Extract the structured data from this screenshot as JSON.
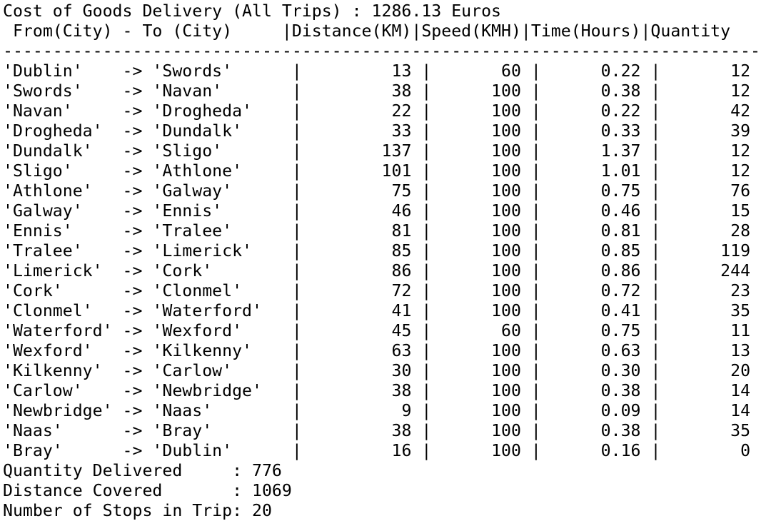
{
  "header": {
    "cost_line": "Cost of Goods Delivery (All Trips) : 1286.13 Euros",
    "columns_line": " From(City) - To (City)     |Distance(KM)|Speed(KMH)|Time(Hours)|Quantity",
    "separator_line": "----------------------------------------------------------------------------"
  },
  "columns": {
    "from_to": "From(City) - To (City)",
    "distance": "Distance(KM)",
    "speed": "Speed(KMH)",
    "time": "Time(Hours)",
    "quantity": "Quantity"
  },
  "trips": [
    {
      "from": "Dublin",
      "to": "Swords",
      "distance": "13",
      "speed": "60",
      "time": "0.22",
      "quantity": "12"
    },
    {
      "from": "Swords",
      "to": "Navan",
      "distance": "38",
      "speed": "100",
      "time": "0.38",
      "quantity": "12"
    },
    {
      "from": "Navan",
      "to": "Drogheda",
      "distance": "22",
      "speed": "100",
      "time": "0.22",
      "quantity": "42"
    },
    {
      "from": "Drogheda",
      "to": "Dundalk",
      "distance": "33",
      "speed": "100",
      "time": "0.33",
      "quantity": "39"
    },
    {
      "from": "Dundalk",
      "to": "Sligo",
      "distance": "137",
      "speed": "100",
      "time": "1.37",
      "quantity": "12"
    },
    {
      "from": "Sligo",
      "to": "Athlone",
      "distance": "101",
      "speed": "100",
      "time": "1.01",
      "quantity": "12"
    },
    {
      "from": "Athlone",
      "to": "Galway",
      "distance": "75",
      "speed": "100",
      "time": "0.75",
      "quantity": "76"
    },
    {
      "from": "Galway",
      "to": "Ennis",
      "distance": "46",
      "speed": "100",
      "time": "0.46",
      "quantity": "15"
    },
    {
      "from": "Ennis",
      "to": "Tralee",
      "distance": "81",
      "speed": "100",
      "time": "0.81",
      "quantity": "28"
    },
    {
      "from": "Tralee",
      "to": "Limerick",
      "distance": "85",
      "speed": "100",
      "time": "0.85",
      "quantity": "119"
    },
    {
      "from": "Limerick",
      "to": "Cork",
      "distance": "86",
      "speed": "100",
      "time": "0.86",
      "quantity": "244"
    },
    {
      "from": "Cork",
      "to": "Clonmel",
      "distance": "72",
      "speed": "100",
      "time": "0.72",
      "quantity": "23"
    },
    {
      "from": "Clonmel",
      "to": "Waterford",
      "distance": "41",
      "speed": "100",
      "time": "0.41",
      "quantity": "35"
    },
    {
      "from": "Waterford",
      "to": "Wexford",
      "distance": "45",
      "speed": "60",
      "time": "0.75",
      "quantity": "11"
    },
    {
      "from": "Wexford",
      "to": "Kilkenny",
      "distance": "63",
      "speed": "100",
      "time": "0.63",
      "quantity": "13"
    },
    {
      "from": "Kilkenny",
      "to": "Carlow",
      "distance": "30",
      "speed": "100",
      "time": "0.30",
      "quantity": "20"
    },
    {
      "from": "Carlow",
      "to": "Newbridge",
      "distance": "38",
      "speed": "100",
      "time": "0.38",
      "quantity": "14"
    },
    {
      "from": "Newbridge",
      "to": "Naas",
      "distance": "9",
      "speed": "100",
      "time": "0.09",
      "quantity": "14"
    },
    {
      "from": "Naas",
      "to": "Bray",
      "distance": "38",
      "speed": "100",
      "time": "0.38",
      "quantity": "35"
    },
    {
      "from": "Bray",
      "to": "Dublin",
      "distance": "16",
      "speed": "100",
      "time": "0.16",
      "quantity": "0"
    }
  ],
  "summary": {
    "quantity_line": "Quantity Delivered     : 776",
    "distance_line": "Distance Covered       : 1069",
    "stops_line": "Number of Stops in Trip: 20"
  }
}
